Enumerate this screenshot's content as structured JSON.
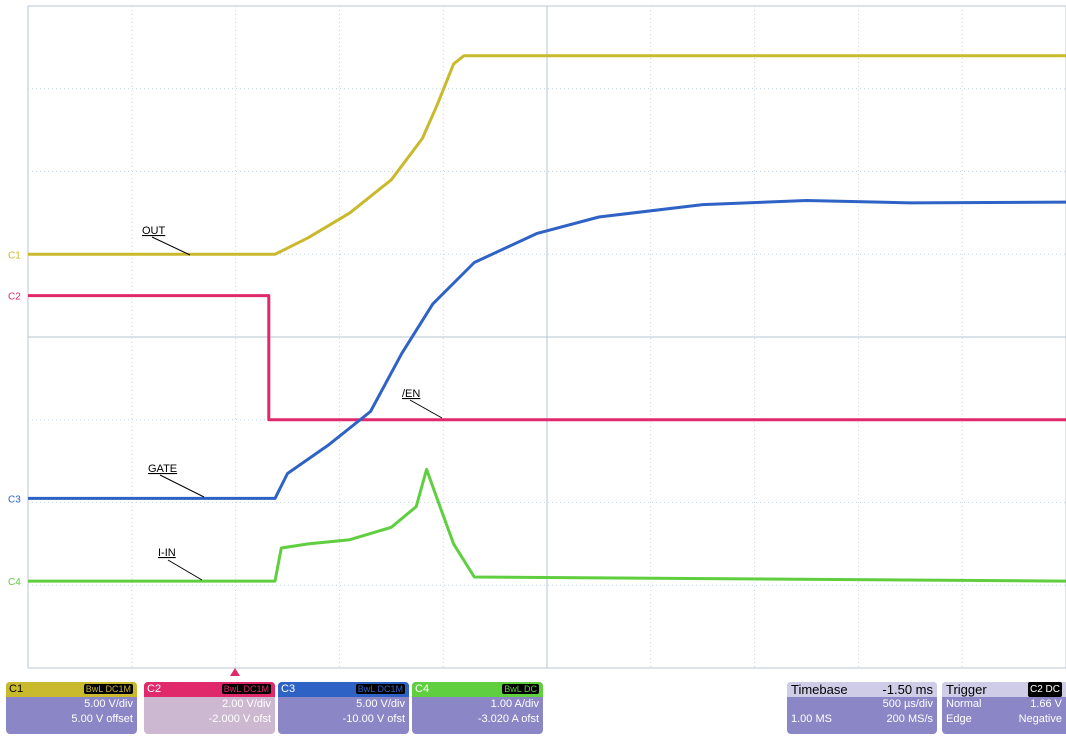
{
  "chart_data": {
    "type": "line",
    "title": "",
    "xlabel": "",
    "ylabel": "",
    "grid": true,
    "x_divisions": 10,
    "y_divisions": 8,
    "time_unit": "ms",
    "xlim": [
      -3.75,
      1.25
    ],
    "ylim": [
      -4,
      4
    ],
    "series": [
      {
        "name": "C1",
        "label": "OUT",
        "color": "#c9b92c",
        "marker_label": "C1",
        "points": [
          [
            -3.75,
            1.0
          ],
          [
            -2.56,
            1.0
          ],
          [
            -2.4,
            1.2
          ],
          [
            -2.2,
            1.5
          ],
          [
            -2.0,
            1.9
          ],
          [
            -1.85,
            2.4
          ],
          [
            -1.78,
            2.8
          ],
          [
            -1.7,
            3.3
          ],
          [
            -1.65,
            3.4
          ],
          [
            1.25,
            3.4
          ]
        ]
      },
      {
        "name": "C2",
        "label": "/EN",
        "color": "#e0296b",
        "marker_label": "C2",
        "points": [
          [
            -3.75,
            0.5
          ],
          [
            -2.59,
            0.5
          ],
          [
            -2.59,
            -1.0
          ],
          [
            1.25,
            -1.0
          ]
        ]
      },
      {
        "name": "C3",
        "label": "GATE",
        "color": "#2e63c5",
        "marker_label": "C3",
        "points": [
          [
            -3.75,
            -1.95
          ],
          [
            -2.56,
            -1.95
          ],
          [
            -2.5,
            -1.65
          ],
          [
            -2.3,
            -1.3
          ],
          [
            -2.1,
            -0.9
          ],
          [
            -1.95,
            -0.2
          ],
          [
            -1.8,
            0.4
          ],
          [
            -1.6,
            0.9
          ],
          [
            -1.3,
            1.25
          ],
          [
            -1.0,
            1.45
          ],
          [
            -0.5,
            1.6
          ],
          [
            0.0,
            1.65
          ],
          [
            0.5,
            1.62
          ],
          [
            1.25,
            1.63
          ]
        ]
      },
      {
        "name": "C4",
        "label": "I-IN",
        "color": "#5fcf3f",
        "marker_label": "C4",
        "points": [
          [
            -3.75,
            -2.95
          ],
          [
            -2.56,
            -2.95
          ],
          [
            -2.53,
            -2.55
          ],
          [
            -2.4,
            -2.5
          ],
          [
            -2.2,
            -2.45
          ],
          [
            -2.0,
            -2.3
          ],
          [
            -1.88,
            -2.05
          ],
          [
            -1.83,
            -1.6
          ],
          [
            -1.78,
            -1.95
          ],
          [
            -1.7,
            -2.5
          ],
          [
            -1.6,
            -2.9
          ],
          [
            1.25,
            -2.95
          ]
        ]
      }
    ],
    "annotations": [
      {
        "text": "OUT",
        "series": "C1"
      },
      {
        "text": "/EN",
        "series": "C2"
      },
      {
        "text": "GATE",
        "series": "C3"
      },
      {
        "text": "I-IN",
        "series": "C4"
      }
    ]
  },
  "channels": [
    {
      "name": "C1",
      "bw": "BwL",
      "coupling": "DC1M",
      "line1": "5.00 V/div",
      "line2": "5.00 V offset",
      "color": "#c9b92c",
      "bg": "#8b86c6"
    },
    {
      "name": "C2",
      "bw": "BwL",
      "coupling": "DC1M",
      "line1": "2.00 V/div",
      "line2": "-2.000 V ofst",
      "color": "#e0296b",
      "bg": "#cdb8d2"
    },
    {
      "name": "C3",
      "bw": "BwL",
      "coupling": "DC1M",
      "line1": "5.00 V/div",
      "line2": "-10.00 V ofst",
      "color": "#2e63c5",
      "bg": "#8b86c6"
    },
    {
      "name": "C4",
      "bw": "BwL",
      "coupling": "DC",
      "line1": "1.00 A/div",
      "line2": "-3.020 A ofst",
      "color": "#5fcf3f",
      "bg": "#8b86c6"
    }
  ],
  "timebase": {
    "label": "Timebase",
    "delay": "-1.50 ms",
    "div": "500 µs/div",
    "samples": "1.00 MS",
    "rate": "200 MS/s"
  },
  "trigger": {
    "label": "Trigger",
    "source": "C2",
    "coupling": "DC",
    "level": "1.66 V",
    "mode": "Normal",
    "type": "Edge",
    "slope": "Negative"
  }
}
